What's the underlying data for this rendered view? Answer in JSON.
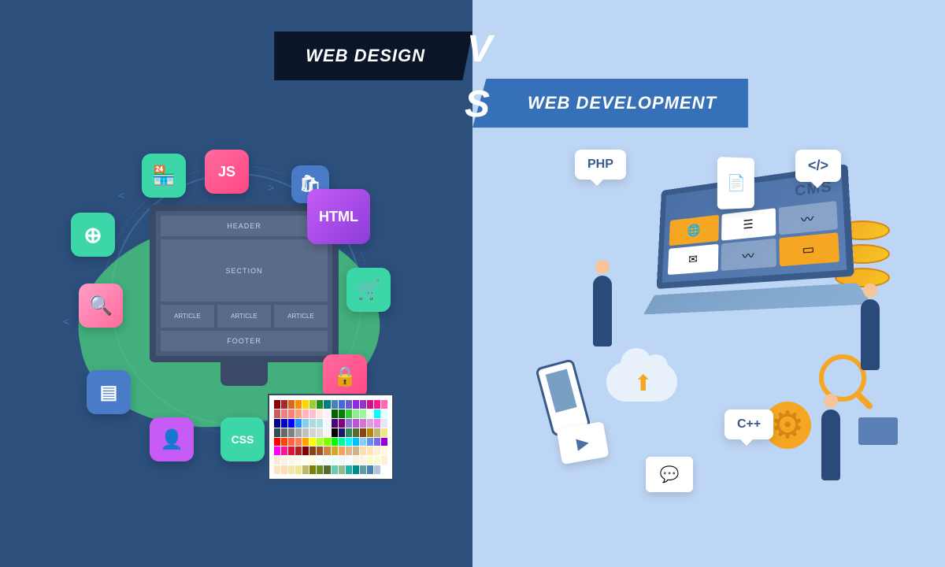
{
  "titles": {
    "left": "WEB DESIGN",
    "right": "WEB DEVELOPMENT",
    "vs_v": "V",
    "vs_s": "S"
  },
  "colors": {
    "left_bg": "#2c4f7c",
    "right_bg": "#bed6f5",
    "title_left_bg": "#0a1628",
    "title_right_bg": "#3670b8",
    "green_accent": "#4bd97e",
    "teal": "#3dd6a8",
    "pink": "#ff6b9d",
    "purple": "#c65bf5",
    "blue": "#4a7bc8",
    "orange": "#f5a623"
  },
  "design": {
    "layout_labels": {
      "header": "HEADER",
      "section": "SECTION",
      "article": "ARTICLE",
      "footer": "FOOTER"
    },
    "tech_badges": {
      "js": "JS",
      "html": "HTML",
      "css": "CSS"
    },
    "palette_colors": [
      "#8b0000",
      "#a52a2a",
      "#d2691e",
      "#ff8c00",
      "#ffd700",
      "#9acd32",
      "#228b22",
      "#008080",
      "#4682b4",
      "#4169e1",
      "#6a5acd",
      "#8a2be2",
      "#9932cc",
      "#c71585",
      "#ff1493",
      "#ff69b4",
      "#cd5c5c",
      "#f08080",
      "#fa8072",
      "#ffa07a",
      "#ffb6c1",
      "#ffc0cb",
      "#ffe4e1",
      "#fff0f5",
      "#006400",
      "#008000",
      "#32cd32",
      "#90ee90",
      "#98fb98",
      "#f0fff0",
      "#00ffff",
      "#e0ffff",
      "#000080",
      "#0000cd",
      "#0000ff",
      "#1e90ff",
      "#87ceeb",
      "#add8e6",
      "#b0e0e6",
      "#f0f8ff",
      "#4b0082",
      "#800080",
      "#9370db",
      "#ba55d3",
      "#da70d6",
      "#dda0dd",
      "#ee82ee",
      "#e6e6fa",
      "#2f4f4f",
      "#696969",
      "#808080",
      "#a9a9a9",
      "#c0c0c0",
      "#d3d3d3",
      "#dcdcdc",
      "#f5f5f5",
      "#000000",
      "#191970",
      "#2e8b57",
      "#556b2f",
      "#8b4513",
      "#b8860b",
      "#bdb76b",
      "#f0e68c",
      "#ff0000",
      "#ff4500",
      "#ff6347",
      "#ff7f50",
      "#ffa500",
      "#ffff00",
      "#adff2f",
      "#7fff00",
      "#00ff00",
      "#00fa9a",
      "#00ffff",
      "#00bfff",
      "#87cefa",
      "#6495ed",
      "#7b68ee",
      "#9400d3",
      "#ff00ff",
      "#ff1493",
      "#dc143c",
      "#b22222",
      "#800000",
      "#8b4513",
      "#a0522d",
      "#cd853f",
      "#daa520",
      "#f4a460",
      "#deb887",
      "#d2b48c",
      "#ffdead",
      "#ffe4b5",
      "#ffefd5",
      "#fff8dc",
      "#faebd7",
      "#faf0e6",
      "#fdf5e6",
      "#fffaf0",
      "#fffff0",
      "#ffffe0",
      "#ffffff",
      "#f5fffa",
      "#f0ffff",
      "#f0f8ff",
      "#f8f8ff",
      "#f5f5dc",
      "#fdf5e6",
      "#fffacd",
      "#fafad2",
      "#ffefd5",
      "#ffe4c4",
      "#ffdab9",
      "#eee8aa",
      "#f0e68c",
      "#bdb76b",
      "#808000",
      "#6b8e23",
      "#556b2f",
      "#66cdaa",
      "#8fbc8f",
      "#20b2aa",
      "#008b8b",
      "#5f9ea0",
      "#4682b4",
      "#b0c4de"
    ]
  },
  "development": {
    "tech_labels": {
      "php": "PHP",
      "code": "</>",
      "cpp": "C++",
      "cms": "CMS"
    }
  }
}
